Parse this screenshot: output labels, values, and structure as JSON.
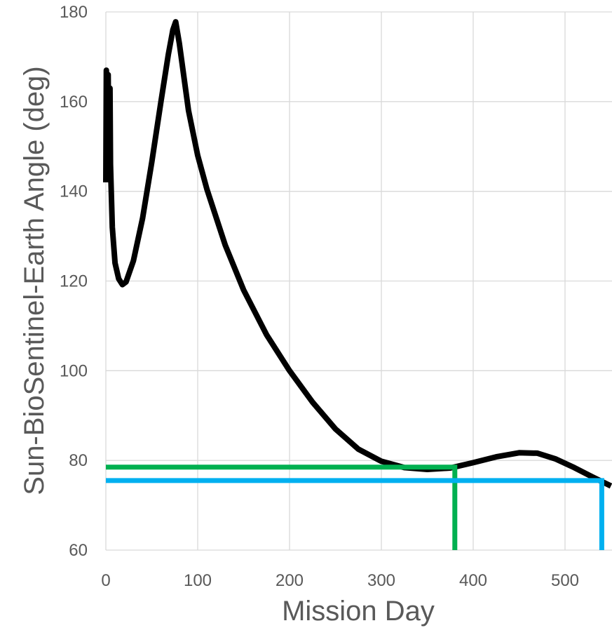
{
  "chart_data": {
    "type": "line",
    "title": "",
    "xlabel": "Mission Day",
    "ylabel": "Sun-BioSentinel-Earth Angle (deg)",
    "xlim": [
      0,
      550
    ],
    "ylim": [
      60,
      180
    ],
    "xticks": [
      0,
      100,
      200,
      300,
      400,
      500
    ],
    "yticks": [
      60,
      80,
      100,
      120,
      140,
      160,
      180
    ],
    "grid": true,
    "legend": "none",
    "series": [
      {
        "color": "#000000",
        "points": [
          [
            0,
            142
          ],
          [
            0.5,
            167
          ],
          [
            1.5,
            143
          ],
          [
            2.5,
            166
          ],
          [
            3.5,
            144
          ],
          [
            4.5,
            163
          ],
          [
            5,
            146
          ],
          [
            7,
            132
          ],
          [
            10,
            124
          ],
          [
            14,
            120.5
          ],
          [
            18,
            119.2
          ],
          [
            22,
            119.8
          ],
          [
            30,
            124.5
          ],
          [
            40,
            134
          ],
          [
            50,
            146.5
          ],
          [
            60,
            160
          ],
          [
            68,
            170.5
          ],
          [
            73,
            176
          ],
          [
            76,
            177.8
          ],
          [
            80,
            173
          ],
          [
            90,
            158
          ],
          [
            100,
            148
          ],
          [
            110,
            140.5
          ],
          [
            130,
            128
          ],
          [
            150,
            118
          ],
          [
            175,
            108
          ],
          [
            200,
            100
          ],
          [
            225,
            93
          ],
          [
            250,
            87
          ],
          [
            275,
            82.5
          ],
          [
            300,
            79.8
          ],
          [
            325,
            78.4
          ],
          [
            350,
            78
          ],
          [
            375,
            78.3
          ],
          [
            400,
            79.5
          ],
          [
            425,
            80.8
          ],
          [
            450,
            81.7
          ],
          [
            470,
            81.6
          ],
          [
            490,
            80.3
          ],
          [
            510,
            78.4
          ],
          [
            530,
            76.3
          ],
          [
            550,
            74.3
          ]
        ]
      },
      {
        "color": "#00b050",
        "points": [
          [
            0,
            78.5
          ],
          [
            380,
            78.5
          ],
          [
            380,
            60
          ]
        ]
      },
      {
        "color": "#00b0f0",
        "points": [
          [
            0,
            75.5
          ],
          [
            540,
            75.5
          ],
          [
            540,
            60
          ]
        ]
      }
    ]
  }
}
